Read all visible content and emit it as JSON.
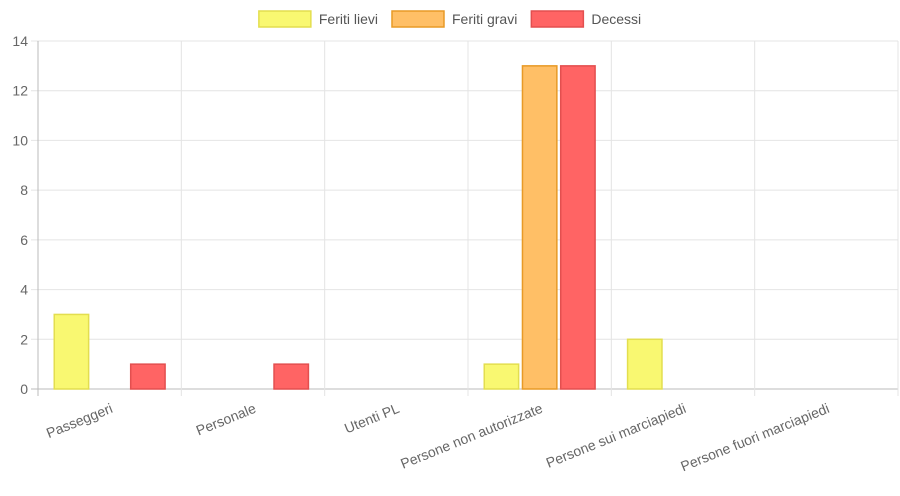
{
  "chart_data": {
    "type": "bar",
    "categories": [
      "Passeggeri",
      "Personale",
      "Utenti PL",
      "Persone non autorizzate",
      "Persone sui marciapiedi",
      "Persone fuori marciapiedi"
    ],
    "series": [
      {
        "name": "Feriti lievi",
        "values": [
          3,
          0,
          0,
          1,
          2,
          0
        ],
        "color": "#f9f871",
        "border": "#e3de4f"
      },
      {
        "name": "Feriti gravi",
        "values": [
          0,
          0,
          0,
          13,
          0,
          0
        ],
        "color": "#ffbf66",
        "border": "#e89a26"
      },
      {
        "name": "Decessi",
        "values": [
          1,
          1,
          0,
          13,
          0,
          0
        ],
        "color": "#ff6464",
        "border": "#e34f4f"
      }
    ],
    "yticks": [
      0,
      2,
      4,
      6,
      8,
      10,
      12,
      14
    ],
    "ylim": [
      0,
      14
    ],
    "grid": true,
    "legend_position": "top",
    "title": "",
    "xlabel": "",
    "ylabel": ""
  }
}
